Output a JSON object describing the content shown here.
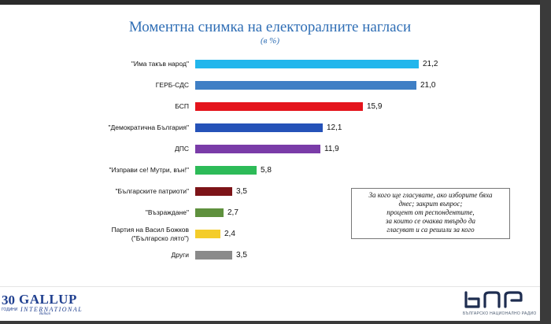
{
  "header": {
    "title": "Моментна снимка на електоралните нагласи",
    "subtitle": "(в %)"
  },
  "chart_data": {
    "type": "bar",
    "orientation": "horizontal",
    "title": "Моментна снимка на електоралните нагласи",
    "subtitle": "(в %)",
    "categories": [
      "\"Има такъв народ\"",
      "ГЕРБ-СДС",
      "БСП",
      "\"Демократична България\"",
      "ДПС",
      "\"Изправи се! Мутри, вън!\"",
      "\"Българските патриоти\"",
      "\"Възраждане\"",
      "Партия на Васил Божков (\"Българско лято\")",
      "Други"
    ],
    "values": [
      21.2,
      21.0,
      15.9,
      12.1,
      11.9,
      5.8,
      3.5,
      2.7,
      2.4,
      3.5
    ],
    "value_labels": [
      "21,2",
      "21,0",
      "15,9",
      "12,1",
      "11,9",
      "5,8",
      "3,5",
      "2,7",
      "2,4",
      "3,5"
    ],
    "colors": [
      "#22b6ec",
      "#3f7fc5",
      "#e4141c",
      "#2552b8",
      "#7a3ca8",
      "#2dbb58",
      "#7d1418",
      "#5f913e",
      "#f4cc2a",
      "#8a8a8a"
    ],
    "xlim": [
      0,
      21.2
    ],
    "grid": false,
    "legend": "none"
  },
  "note_box": {
    "lines": [
      "За кого ще гласувате, ако изборите бяха",
      "днес; закрит въпрос;",
      "процент от респондентите,",
      "за които се очаква твърдо да",
      "гласуват и са решили за кого"
    ]
  },
  "logos": {
    "gallup_number": "30",
    "gallup_since": "ГОДИНИ",
    "gallup_name": "GALLUP",
    "gallup_intl": "INTERNATIONAL",
    "gallup_region": "Balkan",
    "bnr_caption": "БЪЛГАРСКО НАЦИОНАЛНО РАДИО"
  }
}
